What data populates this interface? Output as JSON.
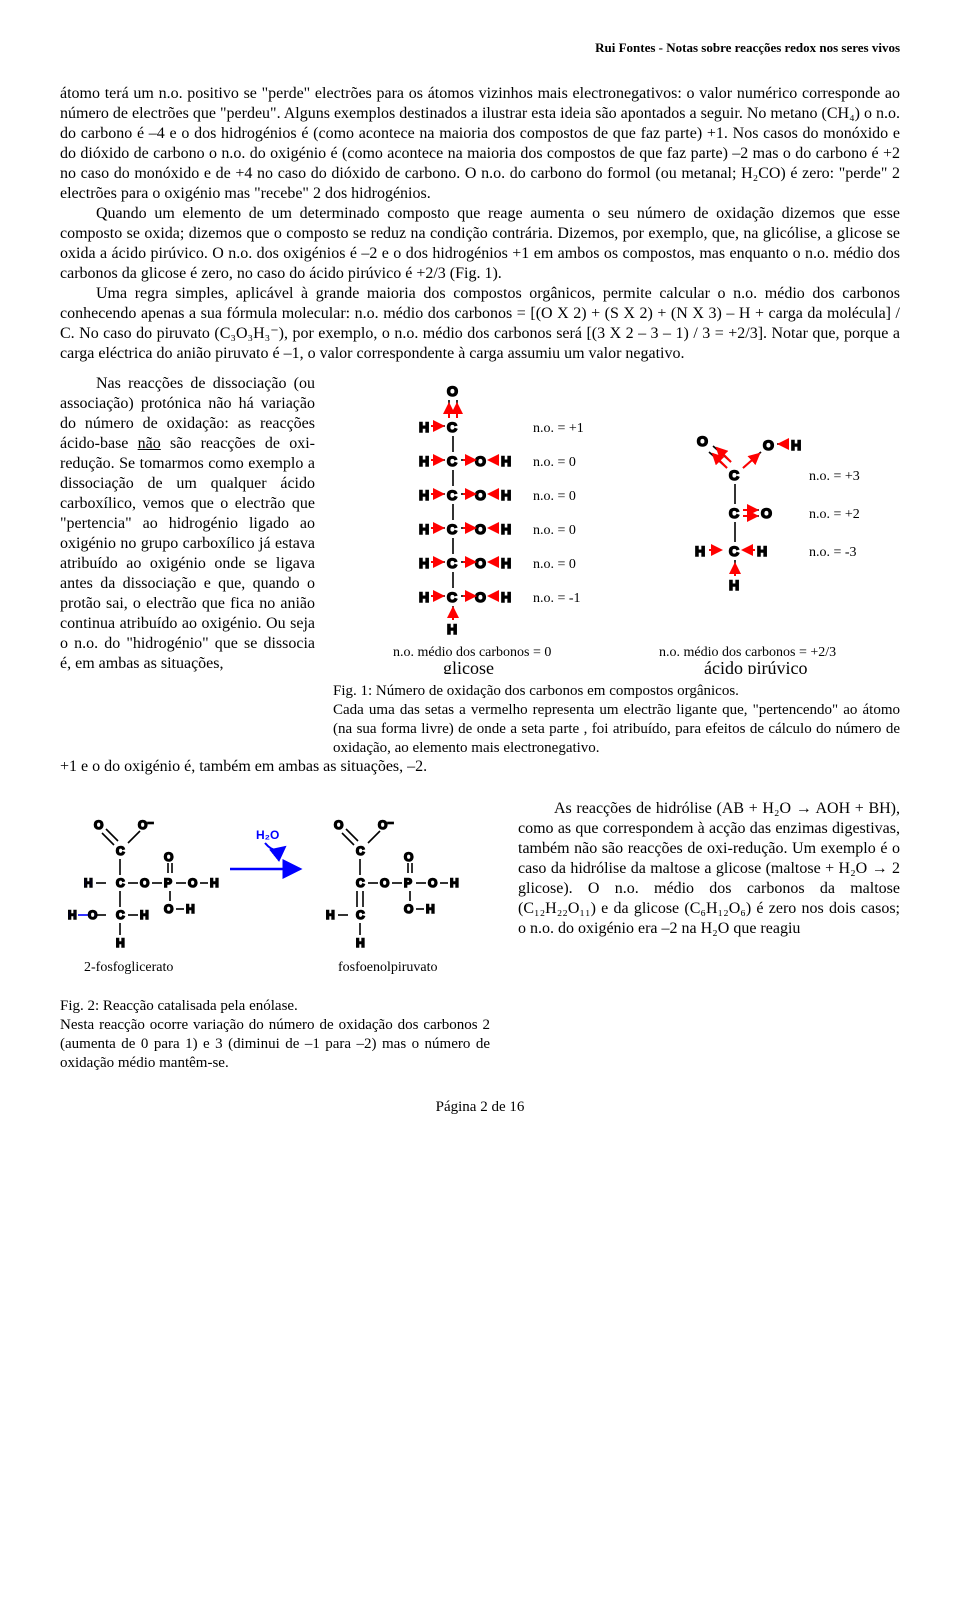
{
  "header": "Rui Fontes - Notas sobre reacções redox nos seres vivos",
  "p1": "átomo terá um n.o. positivo se \"perde\" electrões para os átomos vizinhos mais electronegativos: o valor numérico corresponde ao número de electrões que \"perdeu\". Alguns exemplos destinados a ilustrar esta ideia são apontados a seguir. No metano (CH₄) o n.o. do carbono é –4 e o dos hidrogénios é (como acontece na maioria dos compostos de que faz parte) +1. Nos casos do monóxido e do dióxido de carbono o n.o. do oxigénio é (como acontece na maioria dos compostos de que faz parte) –2 mas o do carbono é +2 no caso do monóxido e de +4 no caso do dióxido de carbono. O n.o. do carbono do formol (ou metanal; H₂CO) é zero: \"perde\" 2 electrões para o oxigénio mas \"recebe\" 2 dos hidrogénios.",
  "p2": "Quando um elemento de um determinado composto que reage aumenta o seu número de oxidação dizemos que esse composto se oxida; dizemos que o composto se reduz na condição contrária. Dizemos, por exemplo, que, na glicólise, a glicose se oxida a ácido pirúvico. O n.o. dos oxigénios é –2 e o dos hidrogénios +1 em ambos os compostos, mas enquanto o n.o. médio dos carbonos da glicose é zero, no caso do ácido pirúvico é +2/3 (Fig. 1).",
  "p3": "Uma regra simples, aplicável à grande maioria dos compostos orgânicos, permite calcular o n.o. médio dos carbonos conhecendo apenas a sua fórmula molecular: n.o. médio dos carbonos = [(O X 2) + (S X 2) + (N X 3)  – H + carga da molécula] / C. No caso do piruvato (C₃O₃H₃⁻), por exemplo, o n.o. médio dos carbonos será [(3 X 2 – 3 – 1) / 3 = +2/3]. Notar que, porque a carga eléctrica do anião piruvato é –1, o valor correspondente à carga assumiu um valor negativo.",
  "p4": "Nas reacções de dissociação (ou associação) protónica não há variação do número de oxidação: as reacções ácido-base não são reacções de oxi-redução. Se tomarmos como exemplo a dissociação de um qualquer ácido carboxílico, vemos que o electrão que \"pertencia\" ao hidrogénio ligado ao oxigénio no grupo carboxílico já estava atribuído ao oxigénio onde se ligava antes da dissociação e que, quando o protão sai, o electrão que fica no anião continua atribuído ao oxigénio. Ou seja o n.o. do \"hidrogénio\" que se dissocia é, em ambas as situações, +1 e o do oxigénio é, também em ambas as situações, –2.",
  "p4_html": "Nas reacções de dissociação (ou associação) protónica não há variação do número de oxidação: as reacções ácido-base <span class='underline'>não</span> são reacções de oxi-redução. Se tomarmos como exemplo a dissociação de um qualquer ácido carboxílico, vemos que o electrão que \"pertencia\" ao hidrogénio ligado ao oxigénio no grupo carboxílico já estava atribuído ao oxigénio onde se ligava antes da dissociação e que, quando o protão sai, o electrão que fica no anião continua atribuído ao oxigénio. Ou seja o n.o. do \"hidrogénio\" que se dissocia é, em ambas as situações,",
  "p4_after": "+1 e o do oxigénio é, também em ambas as situações, –2.",
  "fig1": {
    "caption_line1": "Fig. 1: Número de oxidação dos carbonos em compostos orgânicos.",
    "caption_line2": "Cada uma das setas a vermelho representa um electrão ligante que, \"pertencendo\" ao átomo (na sua forma livre) de onde a seta parte , foi atribuído, para efeitos de cálculo do número de oxidação, ao elemento mais electronegativo.",
    "glicose_label": "glicose",
    "piruvico_label": "ácido pirúvico",
    "glicose_footer": "n.o. médio dos carbonos = 0",
    "piruvico_footer": "n.o. médio dos carbonos = +2/3",
    "no_values_glicose": [
      "n.o. = +1",
      "n.o. = 0",
      "n.o. = 0",
      "n.o. = 0",
      "n.o. = 0",
      "n.o. = -1"
    ],
    "no_values_piruvico": [
      "n.o. = +3",
      "n.o. = +2",
      "n.o. = -3"
    ],
    "colors": {
      "bond": "#000000",
      "arrow": "#ff0000",
      "water": "#0000ff"
    }
  },
  "fig2": {
    "caption_line1": "Fig. 2: Reacção catalisada pela enólase.",
    "caption_line2": "Nesta reacção ocorre variação do número de oxidação dos carbonos 2 (aumenta de 0 para 1) e 3 (diminui de –1 para –2) mas o número de oxidação médio mantêm-se.",
    "left_label": "2-fosfoglicerato",
    "right_label": "fosfoenolpiruvato",
    "h2o_label": "H₂O"
  },
  "p5": "As reacções de hidrólise (AB + H₂O → AOH + BH), como as que correspondem à acção das enzimas digestivas, também não são reacções de oxi-redução. Um exemplo é o caso da hidrólise da maltose a glicose (maltose + H₂O → 2 glicose). O n.o. médio dos carbonos da maltose (C₁₂H₂₂O₁₁) e da glicose (C₆H₁₂O₆) é zero nos dois casos; o n.o. do oxigénio era –2 na H₂O que reagiu",
  "footer": "Página 2 de 16"
}
